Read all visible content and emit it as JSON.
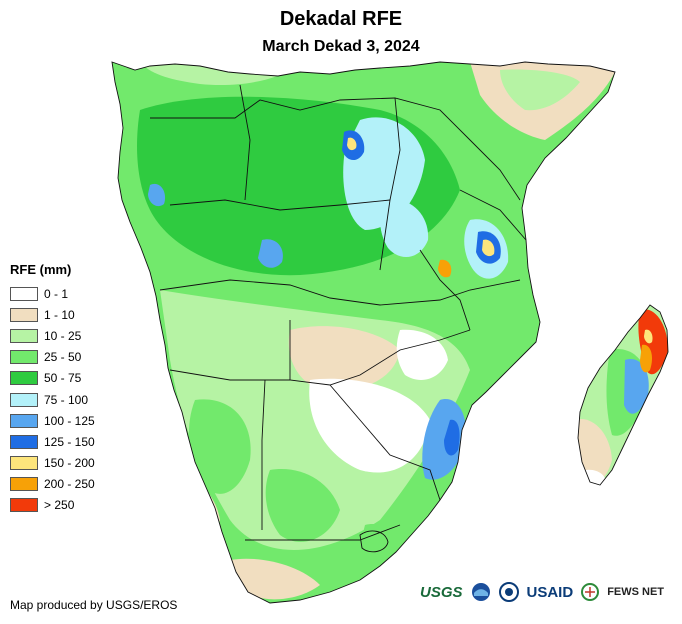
{
  "title": "Dekadal RFE",
  "subtitle": "March Dekad 3, 2024",
  "legend": {
    "title": "RFE (mm)",
    "classes": [
      {
        "label": "0 - 1",
        "color": "#ffffff"
      },
      {
        "label": "1 - 10",
        "color": "#f1dec0"
      },
      {
        "label": "10 - 25",
        "color": "#b6f3a4"
      },
      {
        "label": "25 - 50",
        "color": "#72e96c"
      },
      {
        "label": "50 - 75",
        "color": "#2fcb40"
      },
      {
        "label": "75 - 100",
        "color": "#b3f1f9"
      },
      {
        "label": "100 - 125",
        "color": "#58a6ef"
      },
      {
        "label": "125 - 150",
        "color": "#1f6de4"
      },
      {
        "label": "150 - 200",
        "color": "#fde57c"
      },
      {
        "label": "200 - 250",
        "color": "#f7a107"
      },
      {
        "label": "> 250",
        "color": "#f23a0a"
      }
    ]
  },
  "credit": "Map produced by USGS/EROS",
  "logos": {
    "usgs": "USGS",
    "usaid": "USAID",
    "fews": "FEWS NET"
  }
}
